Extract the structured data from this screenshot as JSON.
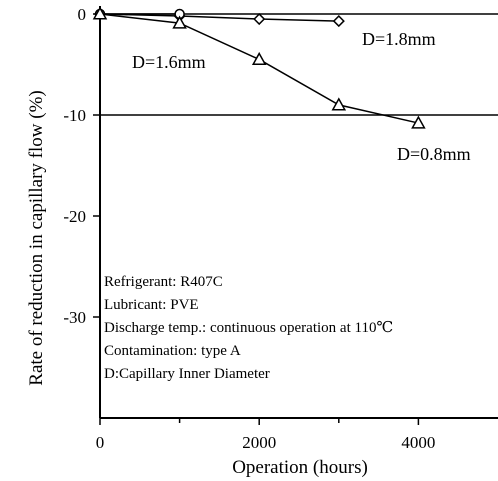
{
  "chart_data": {
    "type": "line",
    "title": "",
    "xlabel": "Operation (hours)",
    "ylabel": "Rate of reduction in capillary flow (%)",
    "xlim": [
      0,
      5000
    ],
    "ylim": [
      -40,
      0
    ],
    "xticks": [
      0,
      2000,
      4000
    ],
    "yticks": [
      0,
      -10,
      -20,
      -30
    ],
    "hlines": [
      0,
      -10
    ],
    "grid": false,
    "series": [
      {
        "name": "D=1.8mm",
        "marker": "diamond",
        "x": [
          0,
          1000,
          2000,
          3000
        ],
        "y": [
          0,
          -0.2,
          -0.5,
          -0.7
        ]
      },
      {
        "name": "D=1.6mm",
        "marker": "circle",
        "x": [
          0,
          1000
        ],
        "y": [
          0,
          0
        ]
      },
      {
        "name": "D=0.8mm",
        "marker": "triangle",
        "x": [
          0,
          1000,
          2000,
          3000,
          4000
        ],
        "y": [
          0,
          -0.9,
          -4.5,
          -9.0,
          -10.8
        ]
      }
    ],
    "annotations": [
      "Refrigerant: R407C",
      "Lubricant: PVE",
      "Discharge temp.: continuous operation at 110℃",
      "Contamination: type A",
      "D:Capillary Inner Diameter"
    ]
  }
}
